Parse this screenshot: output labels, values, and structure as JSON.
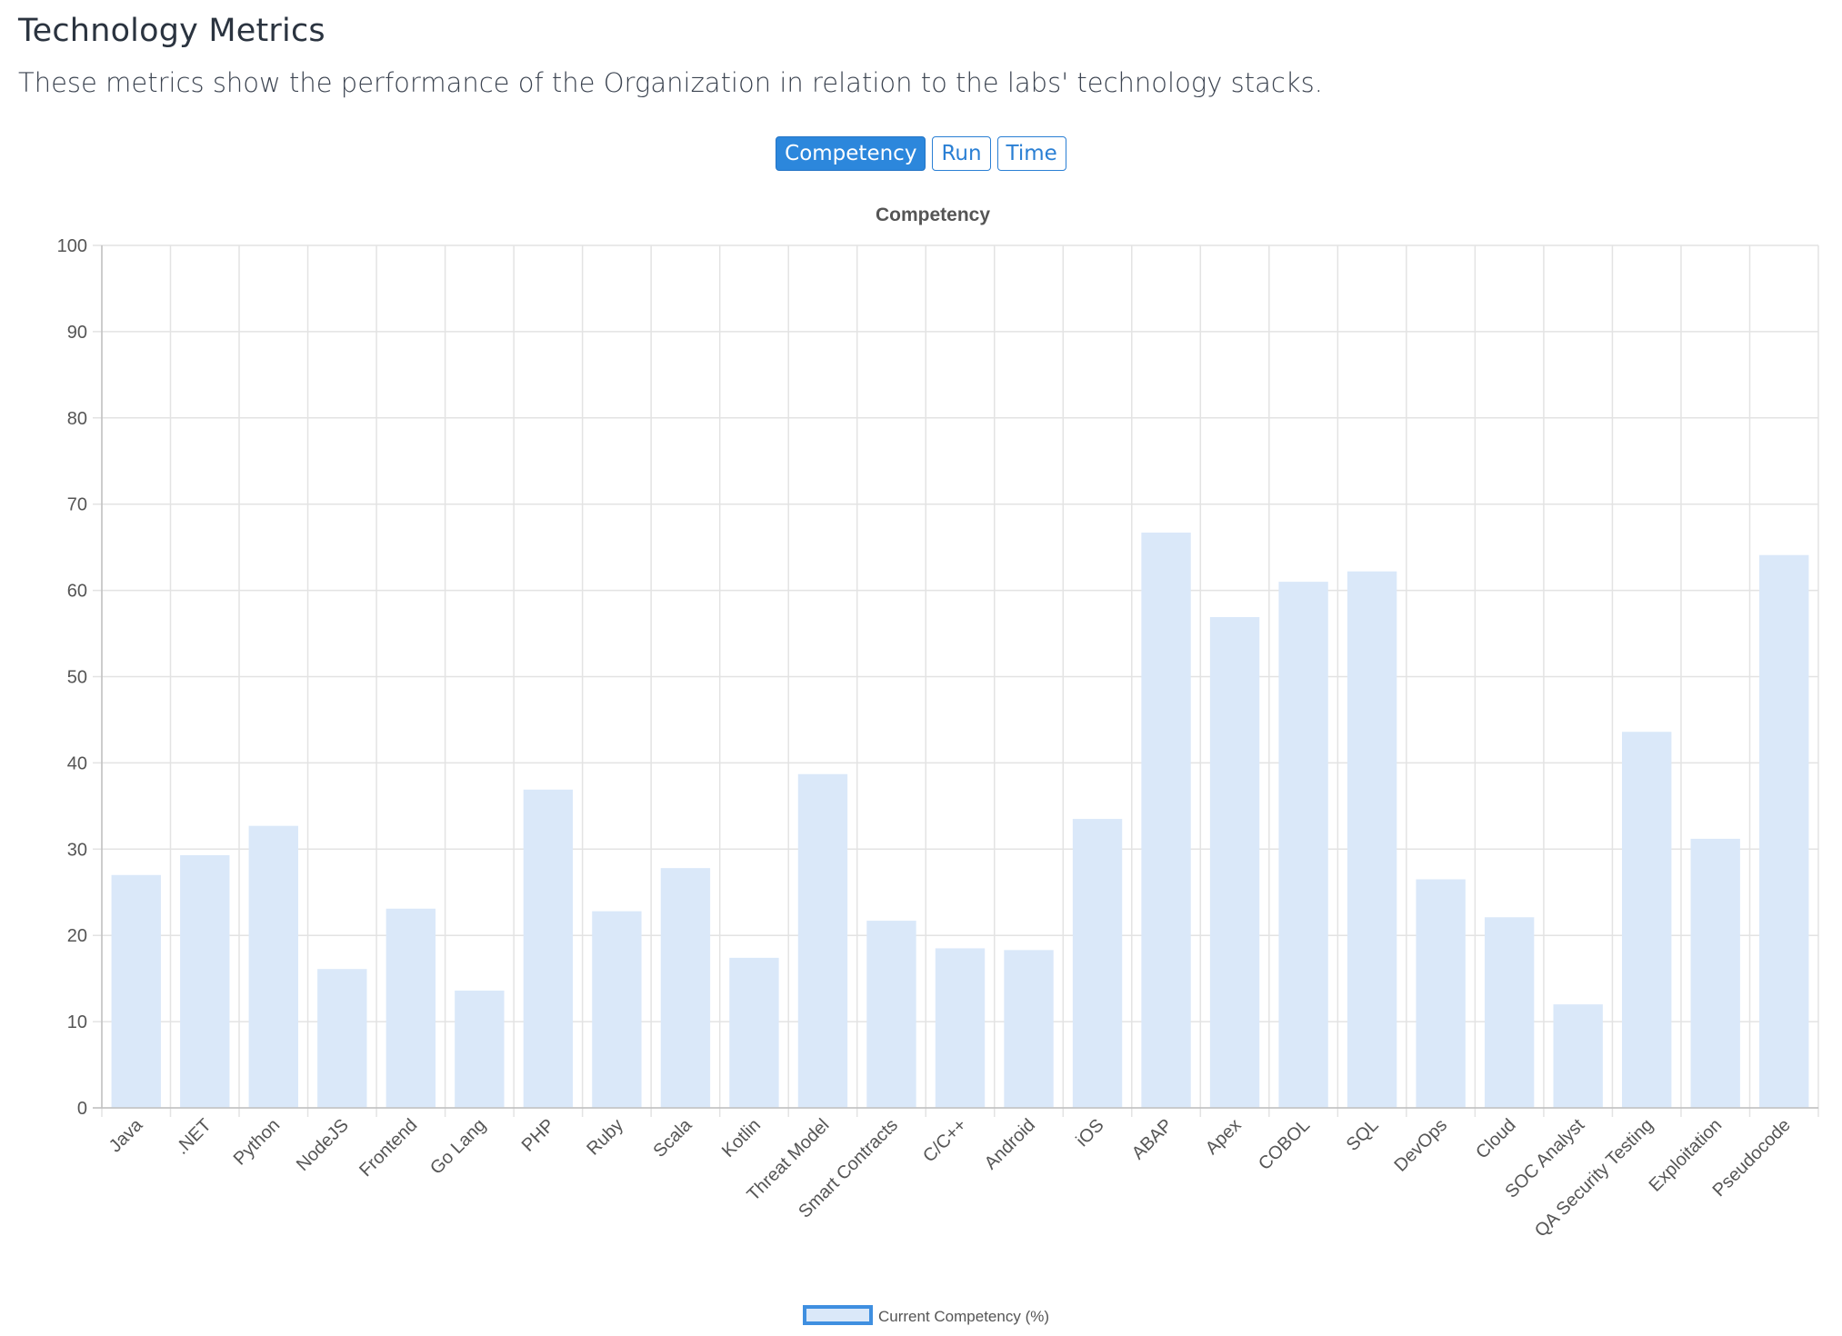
{
  "header": {
    "title": "Technology Metrics",
    "description": "These metrics show the performance of the Organization in relation to the labs' technology stacks."
  },
  "toggles": [
    {
      "label": "Competency",
      "active": true
    },
    {
      "label": "Run",
      "active": false
    },
    {
      "label": "Time",
      "active": false
    }
  ],
  "colors": {
    "bar_fill": "#dae8f9",
    "legend_border": "#3f8fe0",
    "accent": "#2c87dc"
  },
  "chart_data": {
    "type": "bar",
    "title": "Competency",
    "xlabel": "",
    "ylabel": "",
    "ylim": [
      0,
      100
    ],
    "yticks": [
      0,
      10,
      20,
      30,
      40,
      50,
      60,
      70,
      80,
      90,
      100
    ],
    "grid": true,
    "legend_position": "bottom",
    "categories": [
      "Java",
      ".NET",
      "Python",
      "NodeJS",
      "Frontend",
      "Go Lang",
      "PHP",
      "Ruby",
      "Scala",
      "Kotlin",
      "Threat Model",
      "Smart Contracts",
      "C/C++",
      "Android",
      "iOS",
      "ABAP",
      "Apex",
      "COBOL",
      "SQL",
      "DevOps",
      "Cloud",
      "SOC Analyst",
      "QA Security Testing",
      "Exploitation",
      "Pseudocode"
    ],
    "series": [
      {
        "name": "Current Competency (%)",
        "values": [
          27,
          29.3,
          32.7,
          16.1,
          23.1,
          13.6,
          36.9,
          22.8,
          27.8,
          17.4,
          38.7,
          21.7,
          18.5,
          18.3,
          33.5,
          66.7,
          56.9,
          61,
          62.2,
          26.5,
          22.1,
          12,
          43.6,
          31.2,
          64.1
        ]
      }
    ]
  }
}
